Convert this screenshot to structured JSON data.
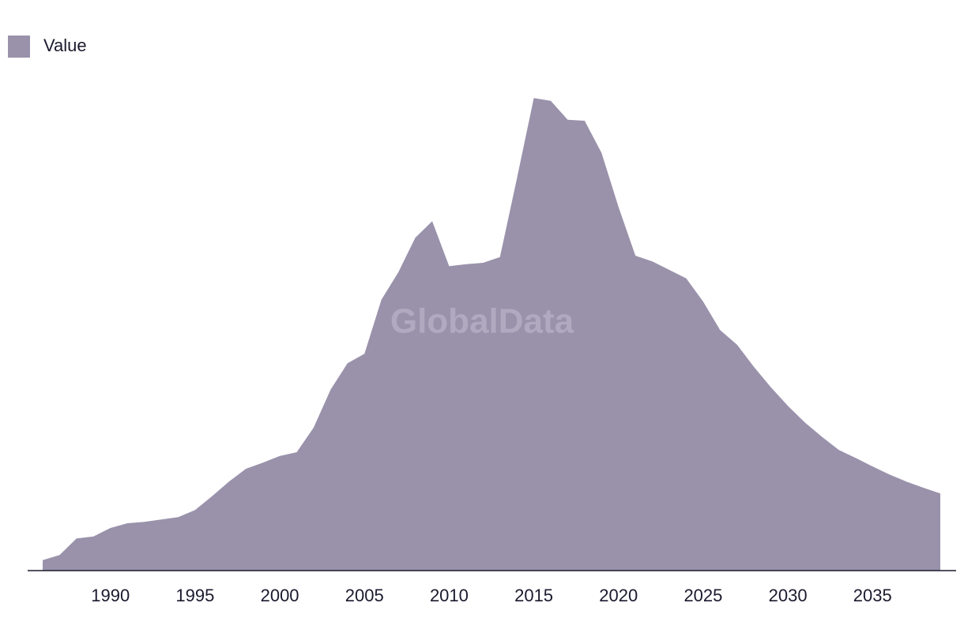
{
  "chart_data": {
    "type": "area",
    "watermark": "GlobalData",
    "x": [
      1986,
      1987,
      1988,
      1989,
      1990,
      1991,
      1992,
      1993,
      1994,
      1995,
      1996,
      1997,
      1998,
      1999,
      2000,
      2001,
      2002,
      2003,
      2004,
      2005,
      2006,
      2007,
      2008,
      2009,
      2010,
      2011,
      2012,
      2013,
      2014,
      2015,
      2016,
      2017,
      2018,
      2019,
      2020,
      2021,
      2022,
      2023,
      2024,
      2025,
      2026,
      2027,
      2028,
      2029,
      2030,
      2031,
      2032,
      2033,
      2034,
      2035,
      2036,
      2037,
      2038,
      2039
    ],
    "series": [
      {
        "name": "Value",
        "color": "#9a92ab",
        "values": [
          2.2,
          3.3,
          6.8,
          7.2,
          9.0,
          10.0,
          10.3,
          10.8,
          11.3,
          12.8,
          15.7,
          18.8,
          21.5,
          22.8,
          24.2,
          25.0,
          30.2,
          38.2,
          43.8,
          45.8,
          57.2,
          63.0,
          70.3,
          73.8,
          64.3,
          64.7,
          65.0,
          66.2,
          82.8,
          99.8,
          99.2,
          95.2,
          95.0,
          88.2,
          76.8,
          66.5,
          65.3,
          63.5,
          61.7,
          56.8,
          50.8,
          47.7,
          43.0,
          38.7,
          34.8,
          31.3,
          28.3,
          25.5,
          23.8,
          22.0,
          20.3,
          18.8,
          17.5,
          16.3
        ]
      }
    ],
    "xlim": [
      1986,
      2039
    ],
    "xticks": [
      1990,
      1995,
      2000,
      2005,
      2010,
      2015,
      2020,
      2025,
      2030,
      2035
    ],
    "ylim": [
      0,
      100
    ],
    "legend": "top-left"
  }
}
